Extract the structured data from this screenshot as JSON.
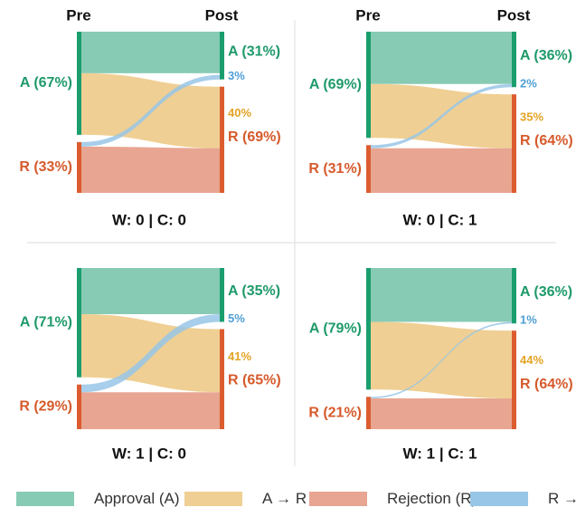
{
  "colors": {
    "approval": "#88cbb5",
    "approval_bar": "#1a9e6e",
    "a_to_r": "#efcf93",
    "rejection": "#e8a591",
    "rejection_bar": "#dc5c2f",
    "r_to_a": "#98c6e6",
    "a_label": "#1e9a6a",
    "r_label": "#d65a2c",
    "ar_label": "#e3a324",
    "ra_label": "#4e9fd6",
    "divider": "#dddddd"
  },
  "header": {
    "pre": "Pre",
    "post": "Post"
  },
  "panels": [
    {
      "title": "W: 0  |  C: 0",
      "pre": {
        "a": 67,
        "r": 33,
        "a_label": "A (67%)",
        "r_label": "R (33%)"
      },
      "post": {
        "a": 31,
        "r": 69,
        "a_label": "A (31%)",
        "r_label": "R (69%)"
      },
      "flows": {
        "a_to_r": 40,
        "r_to_a": 3,
        "a_to_r_label": "40%",
        "r_to_a_label": "3%"
      }
    },
    {
      "title": "W: 0  |  C: 1",
      "pre": {
        "a": 69,
        "r": 31,
        "a_label": "A (69%)",
        "r_label": "R (31%)"
      },
      "post": {
        "a": 36,
        "r": 64,
        "a_label": "A (36%)",
        "r_label": "R (64%)"
      },
      "flows": {
        "a_to_r": 35,
        "r_to_a": 2,
        "a_to_r_label": "35%",
        "r_to_a_label": "2%"
      }
    },
    {
      "title": "W: 1  |  C: 0",
      "pre": {
        "a": 71,
        "r": 29,
        "a_label": "A (71%)",
        "r_label": "R (29%)"
      },
      "post": {
        "a": 35,
        "r": 65,
        "a_label": "A (35%)",
        "r_label": "R (65%)"
      },
      "flows": {
        "a_to_r": 41,
        "r_to_a": 5,
        "a_to_r_label": "41%",
        "r_to_a_label": "5%"
      }
    },
    {
      "title": "W: 1  |  C: 1",
      "pre": {
        "a": 79,
        "r": 21,
        "a_label": "A (79%)",
        "r_label": "R (21%)"
      },
      "post": {
        "a": 36,
        "r": 64,
        "a_label": "A (36%)",
        "r_label": "R (64%)"
      },
      "flows": {
        "a_to_r": 44,
        "r_to_a": 1,
        "a_to_r_label": "44%",
        "r_to_a_label": "1%"
      }
    }
  ],
  "legend": [
    {
      "label": "Approval (A)",
      "color": "#88cbb5"
    },
    {
      "label": "A → R",
      "color": "#efcf93"
    },
    {
      "label": "Rejection (R)",
      "color": "#e8a591"
    },
    {
      "label": "R → A",
      "color": "#98c6e6"
    }
  ]
}
